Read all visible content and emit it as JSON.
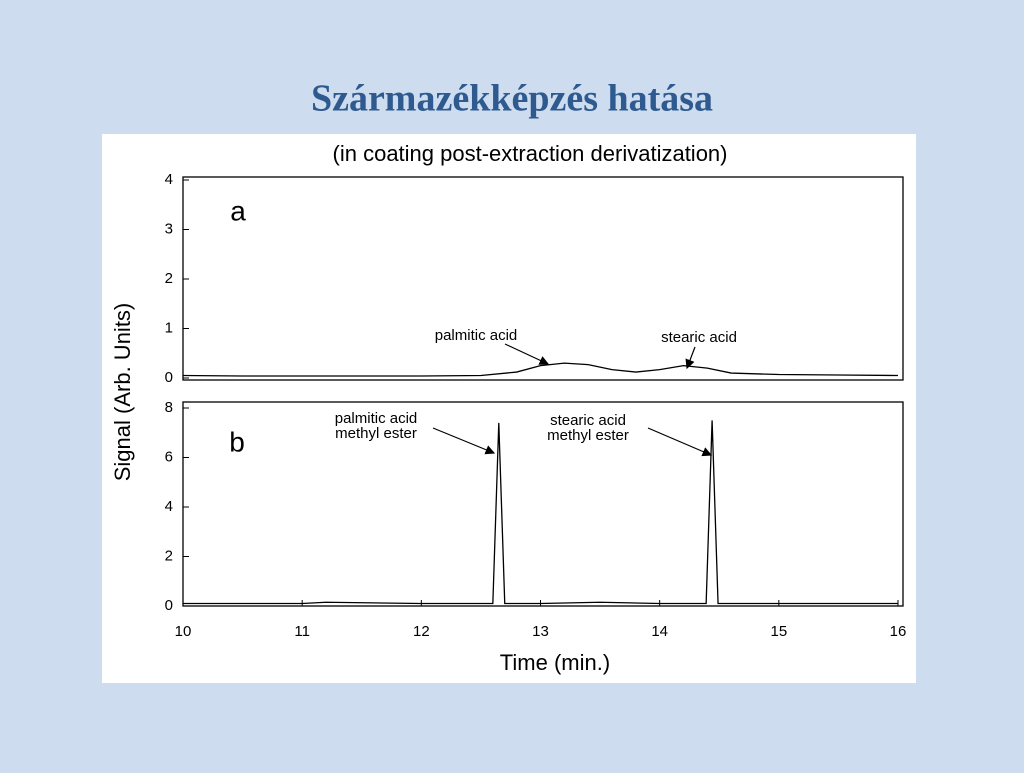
{
  "slide": {
    "title": "Származékképzés hatása"
  },
  "figure": {
    "title": "(in coating post-extraction derivatization)",
    "y_label": "Signal (Arb. Units)",
    "x_label": "Time (min.)"
  },
  "chart_data": [
    {
      "type": "line",
      "panel_label": "a",
      "x": [
        10,
        10.5,
        11,
        11.5,
        12,
        12.5,
        12.8,
        13.0,
        13.2,
        13.4,
        13.6,
        13.8,
        14.0,
        14.2,
        14.4,
        14.6,
        15,
        15.5,
        16
      ],
      "series": [
        {
          "name": "a",
          "color": "#000000",
          "values": [
            0.05,
            0.04,
            0.04,
            0.04,
            0.04,
            0.05,
            0.12,
            0.25,
            0.3,
            0.27,
            0.17,
            0.12,
            0.17,
            0.25,
            0.2,
            0.1,
            0.07,
            0.06,
            0.05
          ]
        }
      ],
      "annotations": [
        [
          "palmitic acid"
        ],
        [
          "stearic acid"
        ]
      ],
      "xlim": [
        10,
        16
      ],
      "ylim": [
        0,
        4
      ],
      "yticks": [
        0,
        1,
        2,
        3,
        4
      ]
    },
    {
      "type": "line",
      "panel_label": "b",
      "x": [
        10,
        11,
        11.2,
        12,
        12.6,
        12.65,
        12.7,
        13,
        13.5,
        14,
        14.39,
        14.44,
        14.49,
        15,
        15.5,
        16
      ],
      "series": [
        {
          "name": "b",
          "color": "#000000",
          "values": [
            0.1,
            0.1,
            0.15,
            0.1,
            0.1,
            7.4,
            0.1,
            0.1,
            0.15,
            0.1,
            0.1,
            7.5,
            0.1,
            0.1,
            0.1,
            0.1
          ]
        }
      ],
      "annotations": [
        [
          "palmitic acid",
          "methyl ester"
        ],
        [
          "stearic acid",
          "methyl ester"
        ]
      ],
      "xlim": [
        10,
        16
      ],
      "xticks": [
        10,
        11,
        12,
        13,
        14,
        15,
        16
      ],
      "ylim": [
        0,
        8
      ],
      "yticks": [
        0,
        2,
        4,
        6,
        8
      ]
    }
  ]
}
